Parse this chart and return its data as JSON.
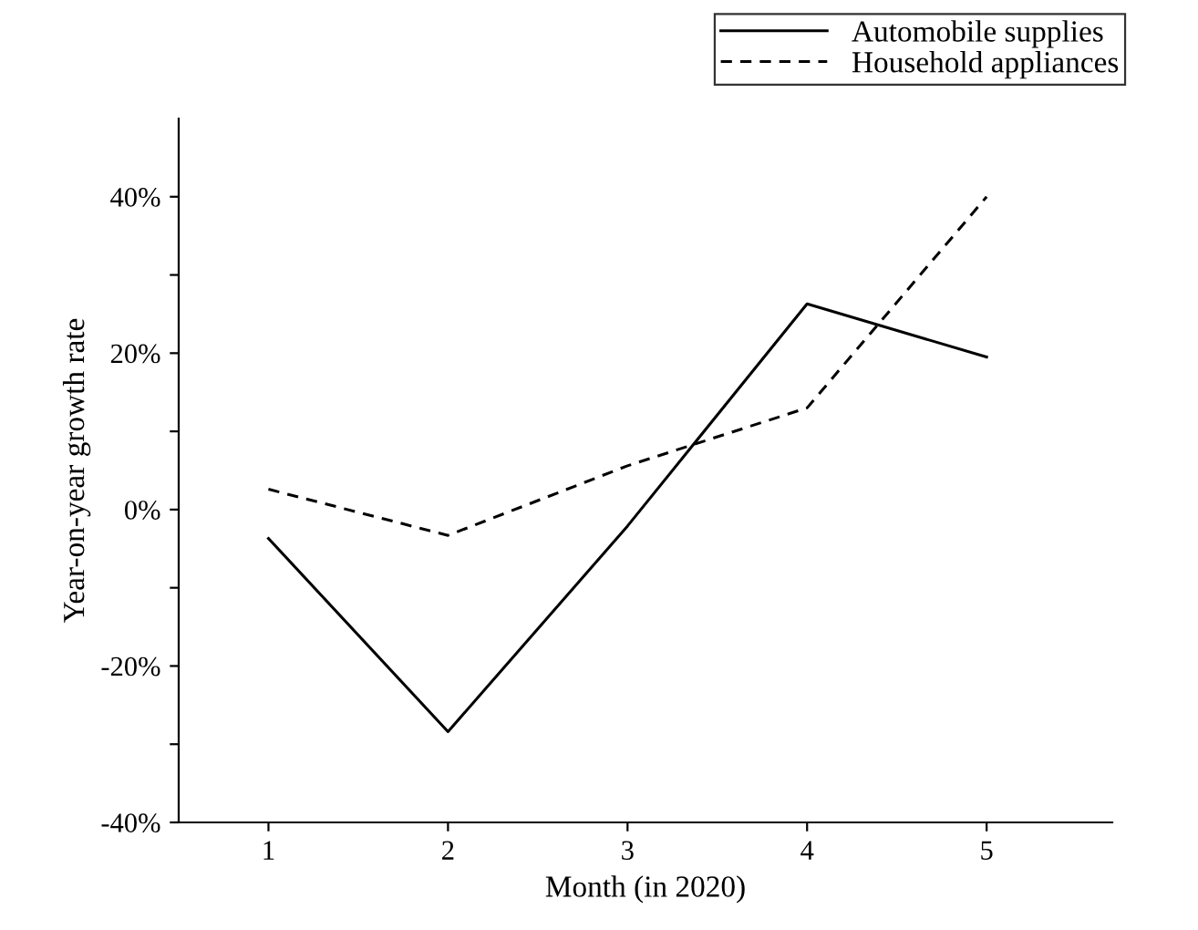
{
  "chart_data": {
    "type": "line",
    "xlabel": "Month (in 2020)",
    "ylabel": "Year-on-year growth rate",
    "x": [
      1,
      2,
      3,
      4,
      5
    ],
    "series": [
      {
        "name": "Automobile supplies",
        "color": "#000000",
        "line_style": "solid",
        "values": [
          -3.7,
          -28.4,
          -2.1,
          26.3,
          19.5
        ]
      },
      {
        "name": "Household appliances",
        "color": "#000000",
        "line_style": "dashed",
        "values": [
          2.6,
          -3.3,
          5.6,
          13.0,
          40.0
        ]
      }
    ],
    "xlim": [
      0.5,
      5.7
    ],
    "xticks": [
      1,
      2,
      3,
      4,
      5
    ],
    "ylim": [
      -40,
      50
    ],
    "yticks": [
      {
        "value": -40,
        "label": "-40%"
      },
      {
        "value": -30,
        "label": null
      },
      {
        "value": -20,
        "label": "-20%"
      },
      {
        "value": -10,
        "label": null
      },
      {
        "value": 0,
        "label": "0%"
      },
      {
        "value": 10,
        "label": null
      },
      {
        "value": 20,
        "label": "20%"
      },
      {
        "value": 30,
        "label": null
      },
      {
        "value": 40,
        "label": "40%"
      }
    ],
    "grid": false,
    "legend": "top right",
    "marker": "none"
  }
}
